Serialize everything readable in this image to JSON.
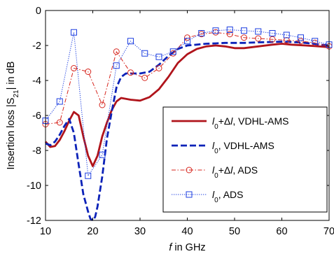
{
  "chart_data": {
    "type": "line",
    "xlabel": {
      "var": "f",
      "rest": " in GHz"
    },
    "ylabel": {
      "main": "Insertion loss |S",
      "sub": "21",
      "tail": "| in dB"
    },
    "xlim": [
      10,
      70
    ],
    "ylim": [
      -12,
      0
    ],
    "xticks": [
      10,
      20,
      30,
      40,
      50,
      60,
      70
    ],
    "yticks": [
      0,
      -2,
      -4,
      -6,
      -8,
      -10,
      -12
    ],
    "grid": false,
    "legend_position": "bottom-right",
    "series": [
      {
        "name": "l0+Δl, VDHL-AMS",
        "legend": {
          "l": "l",
          "sub": "0",
          "rest": "+Δ",
          "l2": "l",
          "tail": ", VDHL-AMS"
        },
        "color": "#b0141b",
        "style": "solid",
        "marker": "none",
        "x": [
          10,
          11,
          12,
          13,
          14,
          15,
          16,
          17,
          18,
          19,
          20,
          21,
          22,
          23,
          24,
          25,
          26,
          28,
          30,
          32,
          34,
          36,
          38,
          40,
          42,
          44,
          46,
          48,
          50,
          52,
          55,
          58,
          60,
          62,
          65,
          68,
          70
        ],
        "y": [
          -7.5,
          -7.8,
          -7.75,
          -7.4,
          -6.9,
          -6.3,
          -5.8,
          -6.0,
          -7.2,
          -8.3,
          -8.9,
          -8.3,
          -7.2,
          -6.4,
          -5.7,
          -5.2,
          -5.0,
          -5.1,
          -5.15,
          -4.95,
          -4.5,
          -3.8,
          -3.0,
          -2.5,
          -2.2,
          -2.05,
          -2.0,
          -2.05,
          -2.15,
          -2.15,
          -2.05,
          -1.95,
          -1.9,
          -1.95,
          -2.0,
          -2.05,
          -2.1
        ]
      },
      {
        "name": "l0, VDHL-AMS",
        "legend": {
          "l": "l",
          "sub": "0",
          "rest": "",
          "l2": "",
          "tail": ", VDHL-AMS"
        },
        "color": "#0c22b8",
        "style": "dashed",
        "marker": "none",
        "x": [
          10,
          11,
          12,
          13,
          14,
          15,
          16,
          17,
          18,
          19,
          19.5,
          20,
          20.5,
          21,
          22,
          23,
          24,
          25,
          26,
          27,
          28,
          30,
          32,
          34,
          36,
          38,
          40,
          42,
          44,
          46,
          48,
          50,
          52,
          55,
          58,
          60,
          62,
          65,
          68,
          70
        ],
        "y": [
          -7.6,
          -7.7,
          -7.5,
          -7.1,
          -6.6,
          -6.2,
          -7.0,
          -8.8,
          -10.5,
          -11.5,
          -11.9,
          -12.0,
          -11.8,
          -11.2,
          -9.5,
          -7.3,
          -5.8,
          -4.4,
          -3.8,
          -3.6,
          -3.6,
          -3.6,
          -3.5,
          -3.1,
          -2.6,
          -2.2,
          -2.0,
          -1.95,
          -1.9,
          -1.88,
          -1.85,
          -1.85,
          -1.85,
          -1.82,
          -1.8,
          -1.78,
          -1.8,
          -1.85,
          -1.95,
          -2.0
        ]
      },
      {
        "name": "l0+Δl, ADS",
        "legend": {
          "l": "l",
          "sub": "0",
          "rest": "+Δ",
          "l2": "l",
          "tail": ", ADS"
        },
        "color": "#d7261e",
        "style": "dashdot",
        "marker": "circle",
        "x": [
          10,
          13,
          16,
          19,
          22,
          25,
          28,
          31,
          34,
          37,
          40,
          43,
          46,
          49,
          52,
          55,
          58,
          61,
          64,
          67,
          70
        ],
        "y": [
          -6.5,
          -6.4,
          -3.3,
          -3.5,
          -5.4,
          -2.35,
          -3.55,
          -3.85,
          -3.3,
          -2.45,
          -1.55,
          -1.35,
          -1.25,
          -1.35,
          -1.55,
          -1.6,
          -1.65,
          -1.7,
          -1.75,
          -1.85,
          -2.05
        ]
      },
      {
        "name": "l0, ADS",
        "legend": {
          "l": "l",
          "sub": "0",
          "rest": "",
          "l2": "",
          "tail": ", ADS"
        },
        "color": "#1d3fe0",
        "style": "dotted",
        "marker": "square",
        "x": [
          10,
          13,
          16,
          19,
          22,
          25,
          28,
          31,
          34,
          37,
          40,
          43,
          46,
          49,
          52,
          55,
          58,
          61,
          64,
          67,
          70
        ],
        "y": [
          -6.3,
          -5.2,
          -1.25,
          -9.45,
          -8.25,
          -3.15,
          -1.75,
          -2.45,
          -2.65,
          -2.35,
          -1.75,
          -1.3,
          -1.15,
          -1.1,
          -1.15,
          -1.2,
          -1.3,
          -1.4,
          -1.55,
          -1.75,
          -1.95
        ]
      }
    ]
  }
}
